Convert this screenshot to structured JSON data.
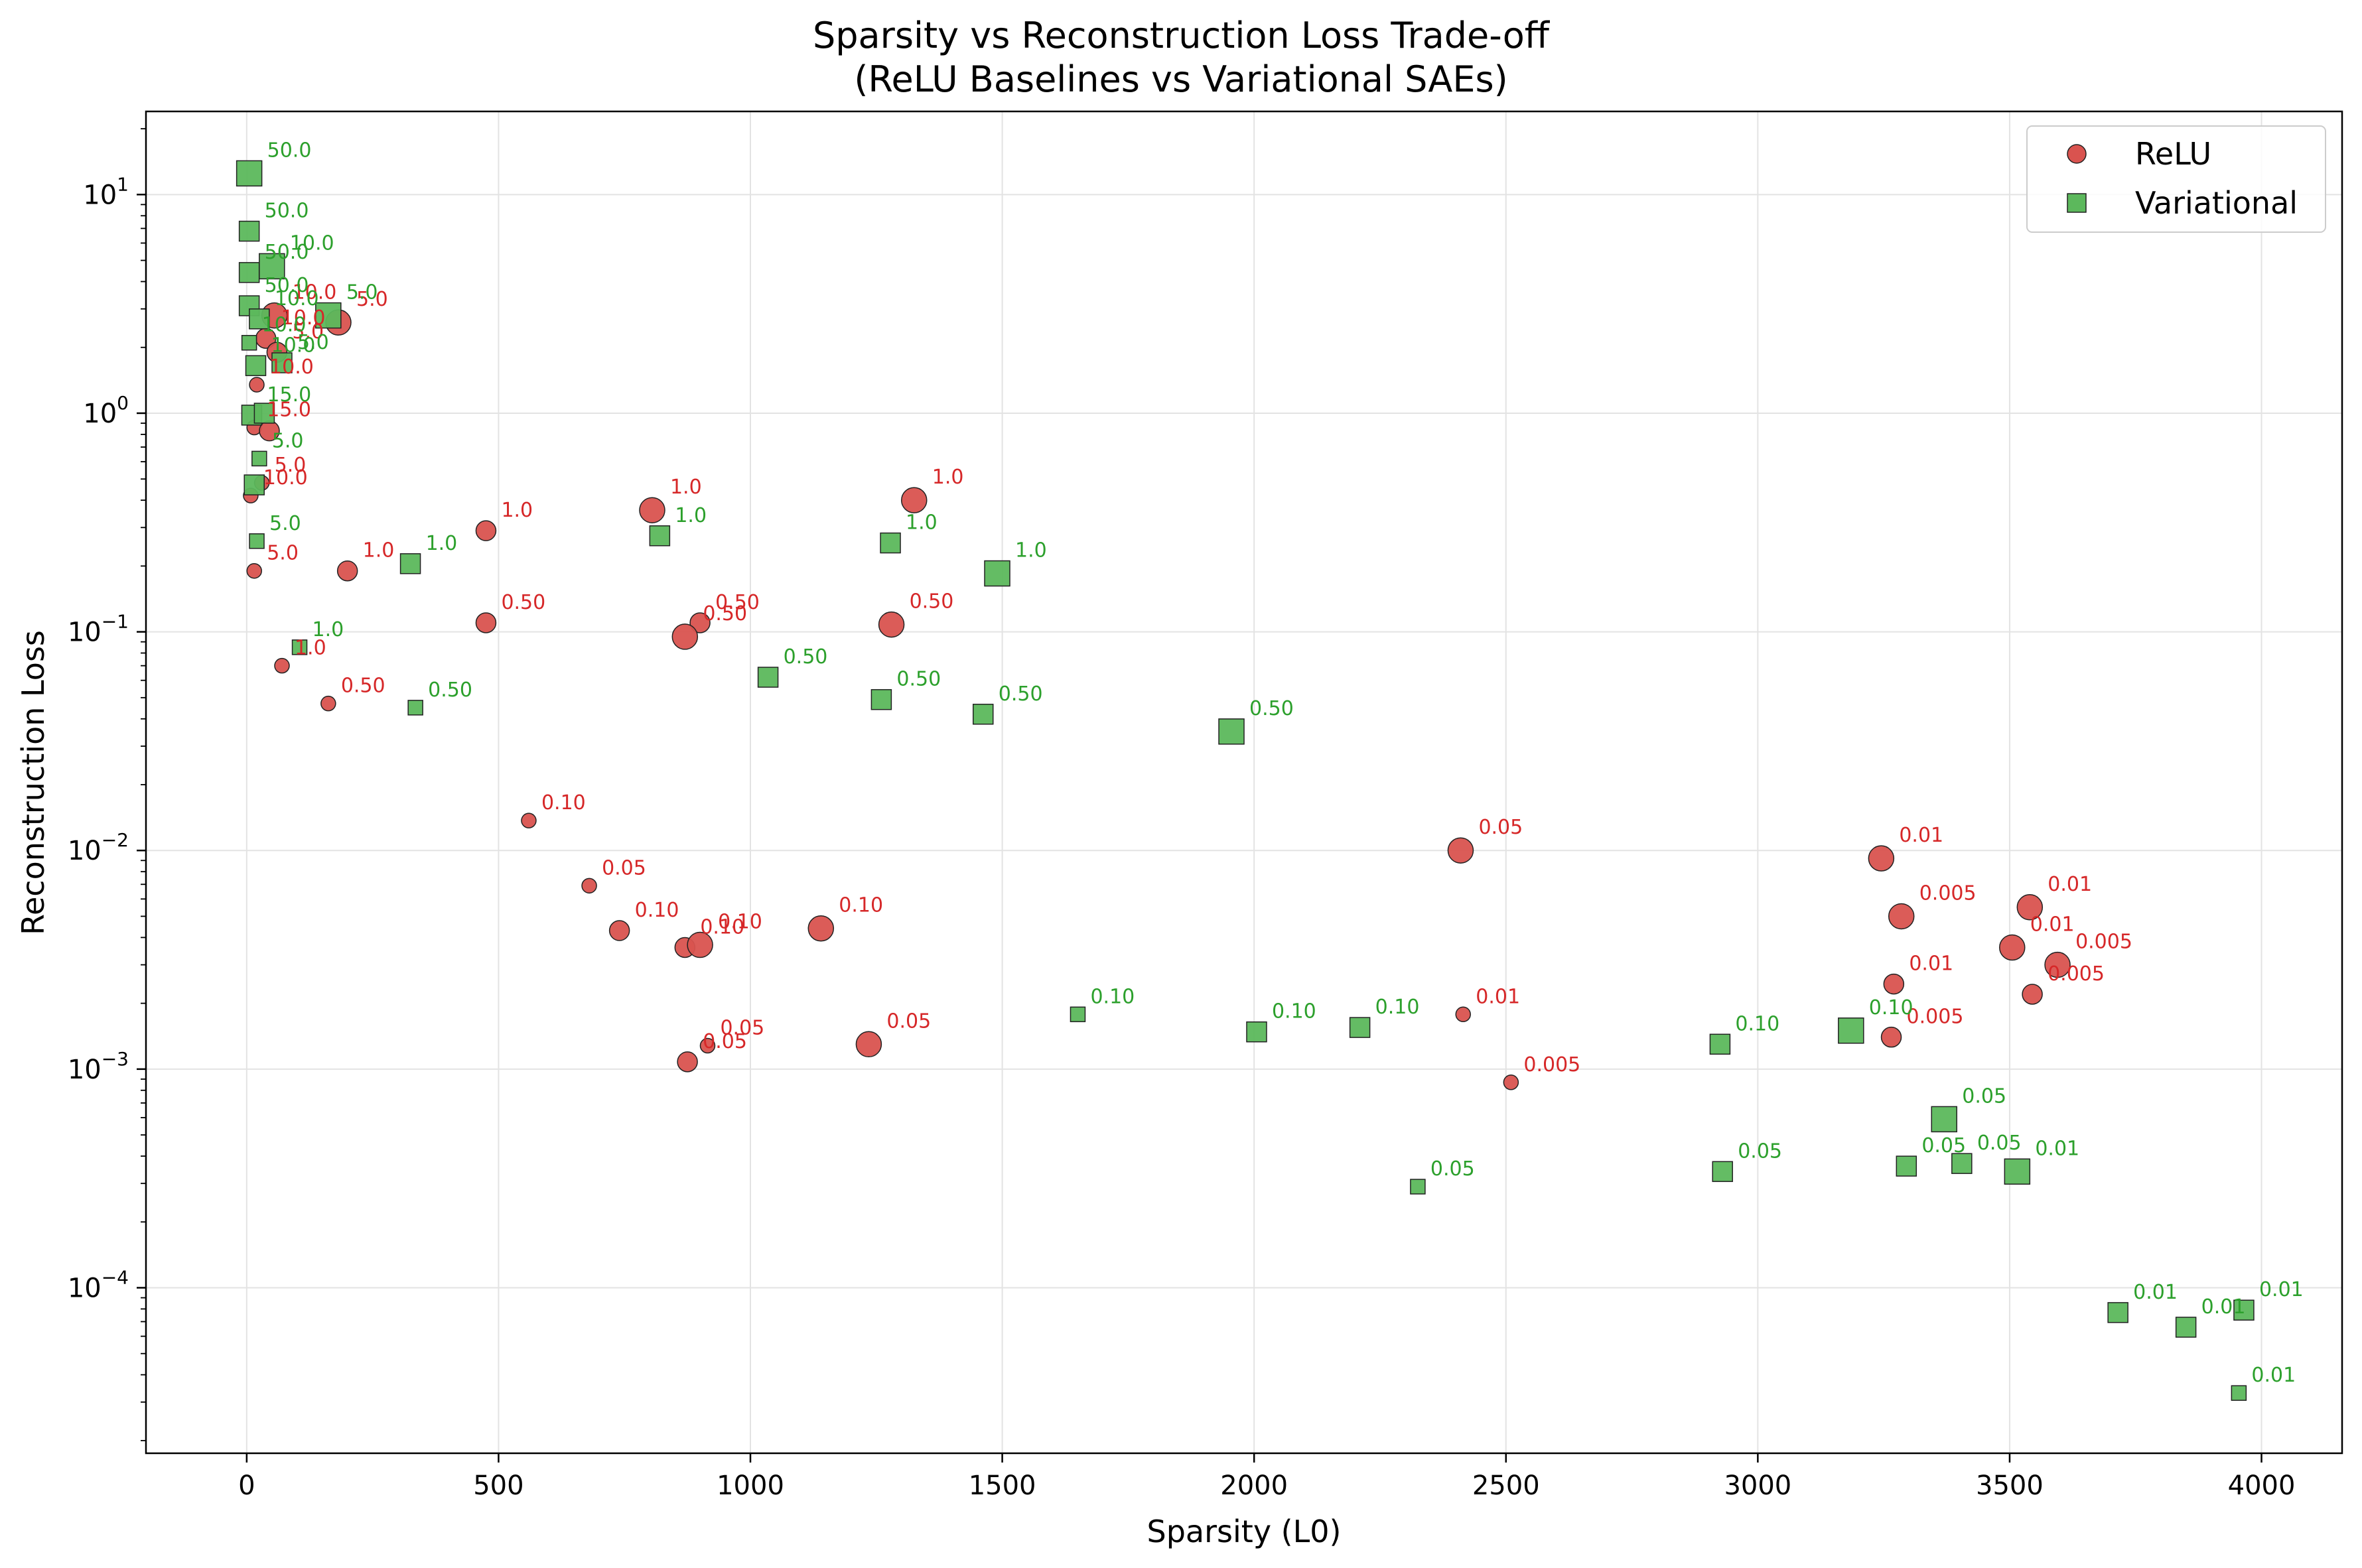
{
  "chart_data": {
    "type": "scatter",
    "title_lines": [
      "Sparsity vs Reconstruction Loss Trade-off",
      "(ReLU Baselines vs Variational SAEs)"
    ],
    "xlabel": "Sparsity (L0)",
    "ylabel": "Reconstruction Loss",
    "x_scale": "linear",
    "y_scale": "log",
    "xlim": [
      -200,
      4160
    ],
    "ylim": [
      1.75e-05,
      24
    ],
    "x_ticks": [
      0,
      500,
      1000,
      1500,
      2000,
      2500,
      3000,
      3500,
      4000
    ],
    "x_tick_labels": [
      "0",
      "500",
      "1000",
      "1500",
      "2000",
      "2500",
      "3000",
      "3500",
      "4000"
    ],
    "y_ticks": [
      {
        "value": 0.0001,
        "base": "10",
        "exp": "−4"
      },
      {
        "value": 0.001,
        "base": "10",
        "exp": "−3"
      },
      {
        "value": 0.01,
        "base": "10",
        "exp": "−2"
      },
      {
        "value": 0.1,
        "base": "10",
        "exp": "−1"
      },
      {
        "value": 1,
        "base": "10",
        "exp": "0"
      },
      {
        "value": 10,
        "base": "10",
        "exp": "1"
      }
    ],
    "grid": true,
    "legend_position": "top-right",
    "series": [
      {
        "name": "ReLU",
        "marker": "circle",
        "color": "#d9534f",
        "label_color": "#d62728",
        "points": [
          {
            "x": 182,
            "y": 2.6,
            "label": "5.0",
            "size": "l"
          },
          {
            "x": 55,
            "y": 2.8,
            "label": "10.0",
            "size": "l"
          },
          {
            "x": 38,
            "y": 2.2,
            "label": "10.0",
            "size": "m"
          },
          {
            "x": 60,
            "y": 1.9,
            "label": "5.0",
            "size": "m"
          },
          {
            "x": 20,
            "y": 1.35,
            "label": "10.0",
            "size": "s"
          },
          {
            "x": 15,
            "y": 0.86,
            "label": "15.0",
            "size": "s"
          },
          {
            "x": 45,
            "y": 0.83,
            "label": "",
            "size": "m"
          },
          {
            "x": 8,
            "y": 0.42,
            "label": "10.0",
            "size": "s"
          },
          {
            "x": 30,
            "y": 0.48,
            "label": "5.0",
            "size": "s"
          },
          {
            "x": 15,
            "y": 0.19,
            "label": "5.0",
            "size": "s"
          },
          {
            "x": 200,
            "y": 0.19,
            "label": "1.0",
            "size": "m"
          },
          {
            "x": 475,
            "y": 0.29,
            "label": "1.0",
            "size": "m"
          },
          {
            "x": 805,
            "y": 0.36,
            "label": "1.0",
            "size": "l"
          },
          {
            "x": 1325,
            "y": 0.4,
            "label": "1.0",
            "size": "l"
          },
          {
            "x": 70,
            "y": 0.07,
            "label": "1.0",
            "size": "s"
          },
          {
            "x": 475,
            "y": 0.11,
            "label": "0.50",
            "size": "m"
          },
          {
            "x": 900,
            "y": 0.11,
            "label": "0.50",
            "size": "m"
          },
          {
            "x": 870,
            "y": 0.095,
            "label": "0.50",
            "size": "l"
          },
          {
            "x": 1280,
            "y": 0.108,
            "label": "0.50",
            "size": "l"
          },
          {
            "x": 162,
            "y": 0.047,
            "label": "0.50",
            "size": "s"
          },
          {
            "x": 560,
            "y": 0.0137,
            "label": "0.10",
            "size": "s"
          },
          {
            "x": 680,
            "y": 0.0069,
            "label": "0.05",
            "size": "s"
          },
          {
            "x": 740,
            "y": 0.0043,
            "label": "0.10",
            "size": "m"
          },
          {
            "x": 870,
            "y": 0.0036,
            "label": "0.10",
            "size": "m"
          },
          {
            "x": 900,
            "y": 0.0037,
            "label": "0.10",
            "size": "l"
          },
          {
            "x": 1140,
            "y": 0.0044,
            "label": "0.10",
            "size": "l"
          },
          {
            "x": 875,
            "y": 0.00108,
            "label": "0.05",
            "size": "m"
          },
          {
            "x": 915,
            "y": 0.00128,
            "label": "0.05",
            "size": "s"
          },
          {
            "x": 1235,
            "y": 0.0013,
            "label": "0.05",
            "size": "l"
          },
          {
            "x": 2410,
            "y": 0.01,
            "label": "0.05",
            "size": "l"
          },
          {
            "x": 2415,
            "y": 0.00178,
            "label": "0.01",
            "size": "s"
          },
          {
            "x": 2510,
            "y": 0.00087,
            "label": "0.005",
            "size": "s"
          },
          {
            "x": 3245,
            "y": 0.0092,
            "label": "0.01",
            "size": "l"
          },
          {
            "x": 3285,
            "y": 0.005,
            "label": "0.005",
            "size": "l"
          },
          {
            "x": 3270,
            "y": 0.00245,
            "label": "0.01",
            "size": "m"
          },
          {
            "x": 3265,
            "y": 0.0014,
            "label": "0.005",
            "size": "m"
          },
          {
            "x": 3540,
            "y": 0.0055,
            "label": "0.01",
            "size": "l"
          },
          {
            "x": 3505,
            "y": 0.0036,
            "label": "0.01",
            "size": "l"
          },
          {
            "x": 3595,
            "y": 0.003,
            "label": "0.005",
            "size": "l"
          },
          {
            "x": 3545,
            "y": 0.0022,
            "label": "0.005",
            "size": "m"
          }
        ]
      },
      {
        "name": "Variational",
        "marker": "square",
        "color": "#5cb85c",
        "label_color": "#2ca02c",
        "points": [
          {
            "x": 5,
            "y": 12.5,
            "label": "50.0",
            "size": "l"
          },
          {
            "x": 5,
            "y": 6.8,
            "label": "50.0",
            "size": "m"
          },
          {
            "x": 5,
            "y": 4.4,
            "label": "50.0",
            "size": "m"
          },
          {
            "x": 50,
            "y": 4.7,
            "label": "10.0",
            "size": "l"
          },
          {
            "x": 5,
            "y": 3.1,
            "label": "50.0",
            "size": "m"
          },
          {
            "x": 25,
            "y": 2.7,
            "label": "10.0",
            "size": "m"
          },
          {
            "x": 162,
            "y": 2.8,
            "label": "5.0",
            "size": "l"
          },
          {
            "x": 5,
            "y": 2.1,
            "label": "10.0",
            "size": "s"
          },
          {
            "x": 18,
            "y": 1.65,
            "label": "10.0",
            "size": "m"
          },
          {
            "x": 70,
            "y": 1.7,
            "label": "5.0",
            "size": "m"
          },
          {
            "x": 10,
            "y": 0.98,
            "label": "15.0",
            "size": "m"
          },
          {
            "x": 35,
            "y": 1.0,
            "label": "",
            "size": "m"
          },
          {
            "x": 25,
            "y": 0.62,
            "label": "5.0",
            "size": "s"
          },
          {
            "x": 15,
            "y": 0.47,
            "label": "",
            "size": "m"
          },
          {
            "x": 20,
            "y": 0.26,
            "label": "5.0",
            "size": "s"
          },
          {
            "x": 325,
            "y": 0.205,
            "label": "1.0",
            "size": "m"
          },
          {
            "x": 820,
            "y": 0.275,
            "label": "1.0",
            "size": "m"
          },
          {
            "x": 1278,
            "y": 0.255,
            "label": "1.0",
            "size": "m"
          },
          {
            "x": 1490,
            "y": 0.185,
            "label": "1.0",
            "size": "l"
          },
          {
            "x": 105,
            "y": 0.085,
            "label": "1.0",
            "size": "s"
          },
          {
            "x": 335,
            "y": 0.045,
            "label": "0.50",
            "size": "s"
          },
          {
            "x": 1035,
            "y": 0.062,
            "label": "0.50",
            "size": "m"
          },
          {
            "x": 1260,
            "y": 0.049,
            "label": "0.50",
            "size": "m"
          },
          {
            "x": 1462,
            "y": 0.042,
            "label": "0.50",
            "size": "m"
          },
          {
            "x": 1955,
            "y": 0.035,
            "label": "0.50",
            "size": "l"
          },
          {
            "x": 1650,
            "y": 0.00178,
            "label": "0.10",
            "size": "s"
          },
          {
            "x": 2005,
            "y": 0.00148,
            "label": "0.10",
            "size": "m"
          },
          {
            "x": 2210,
            "y": 0.00155,
            "label": "0.10",
            "size": "m"
          },
          {
            "x": 2925,
            "y": 0.0013,
            "label": "0.10",
            "size": "m"
          },
          {
            "x": 3185,
            "y": 0.0015,
            "label": "0.10",
            "size": "l"
          },
          {
            "x": 2325,
            "y": 0.00029,
            "label": "0.05",
            "size": "s"
          },
          {
            "x": 2930,
            "y": 0.00034,
            "label": "0.05",
            "size": "m"
          },
          {
            "x": 3295,
            "y": 0.00036,
            "label": "0.05",
            "size": "m"
          },
          {
            "x": 3370,
            "y": 0.00059,
            "label": "0.05",
            "size": "l"
          },
          {
            "x": 3405,
            "y": 0.00037,
            "label": "0.05",
            "size": "m"
          },
          {
            "x": 3515,
            "y": 0.00034,
            "label": "0.01",
            "size": "l"
          },
          {
            "x": 3715,
            "y": 7.7e-05,
            "label": "0.01",
            "size": "m"
          },
          {
            "x": 3850,
            "y": 6.6e-05,
            "label": "0.01",
            "size": "m"
          },
          {
            "x": 3965,
            "y": 7.9e-05,
            "label": "0.01",
            "size": "m"
          },
          {
            "x": 3955,
            "y": 3.3e-05,
            "label": "0.01",
            "size": "s"
          }
        ]
      }
    ]
  }
}
